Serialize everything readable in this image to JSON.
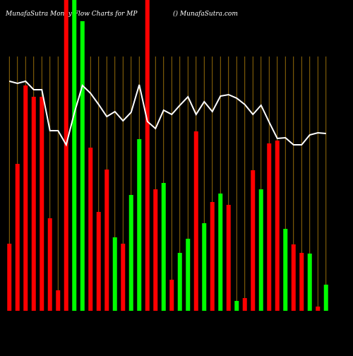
{
  "chart_data": {
    "type": "bar",
    "title": "MunafaSutra  Money Flow  Charts for MP",
    "subtitle": "() MunafaSutra.com",
    "ylim": [
      0,
      440
    ],
    "background": "#000000",
    "grid_color": "#b8860b",
    "series": [
      {
        "type": "bar",
        "colors": [
          "#ff0000",
          "#ff0000",
          "#ff0000",
          "#ff0000",
          "#ff0000",
          "#ff0000",
          "#ff0000",
          "#ff0000",
          "#00ff00",
          "#00ff00",
          "#ff0000",
          "#ff0000",
          "#ff0000",
          "#00ff00",
          "#ff0000",
          "#00ff00",
          "#00ff00",
          "#ff0000",
          "#ff0000",
          "#00ff00",
          "#ff0000",
          "#00ff00",
          "#00ff00",
          "#ff0000",
          "#00ff00",
          "#ff0000",
          "#00ff00",
          "#ff0000",
          "#00ff00",
          "#ff0000",
          "#ff0000",
          "#00ff00",
          "#ff0000",
          "#ff0000",
          "#00ff00",
          "#ff0000",
          "#ff0000",
          "#00ff00",
          "#ff0000",
          "#00ff00"
        ],
        "values": [
          95,
          208,
          319,
          303,
          303,
          131,
          29,
          440,
          440,
          410,
          231,
          140,
          200,
          104,
          95,
          164,
          243,
          440,
          172,
          181,
          44,
          82,
          102,
          254,
          124,
          154,
          166,
          150,
          14,
          18,
          199,
          172,
          237,
          241,
          116,
          94,
          82,
          81,
          6,
          37
        ]
      },
      {
        "type": "line",
        "color": "#ffffff",
        "values": [
          325,
          322,
          325,
          313,
          313,
          255,
          255,
          235,
          280,
          319,
          308,
          292,
          275,
          282,
          269,
          281,
          320,
          268,
          258,
          284,
          278,
          291,
          303,
          278,
          296,
          282,
          304,
          306,
          301,
          292,
          278,
          291,
          267,
          244,
          245,
          235,
          235,
          249,
          252,
          251
        ]
      }
    ]
  }
}
